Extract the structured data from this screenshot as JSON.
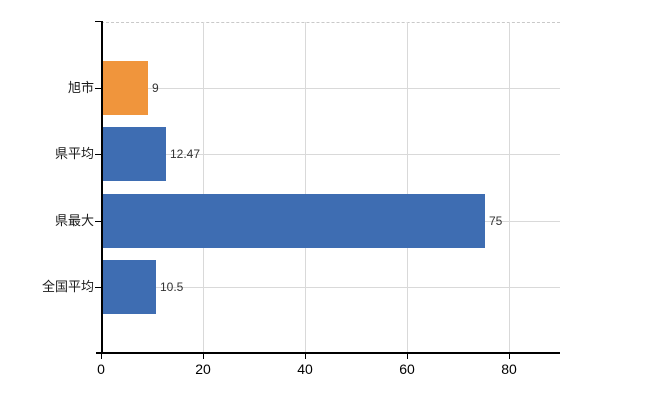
{
  "chart_data": {
    "type": "bar",
    "orientation": "horizontal",
    "title": "",
    "xlabel": "",
    "ylabel": "",
    "categories": [
      "旭市",
      "県平均",
      "県最大",
      "全国平均"
    ],
    "values": [
      9,
      12.47,
      75,
      10.5
    ],
    "value_labels": [
      "9",
      "12.47",
      "75",
      "10.5"
    ],
    "bar_colors": [
      "#f0953c",
      "#3e6db2",
      "#3e6db2",
      "#3e6db2"
    ],
    "x_ticks": [
      0,
      20,
      40,
      60,
      80
    ],
    "x_tick_labels": [
      "0",
      "20",
      "40",
      "60",
      "80"
    ],
    "xlim": [
      0,
      90
    ],
    "grid": true,
    "legend": "none",
    "colors": {
      "orange_bar": "#f0953c",
      "blue_bar": "#3e6db2",
      "gridline": "#d9d9d9",
      "axis": "#000000",
      "value_text": "#333333",
      "background": "#ffffff"
    }
  }
}
